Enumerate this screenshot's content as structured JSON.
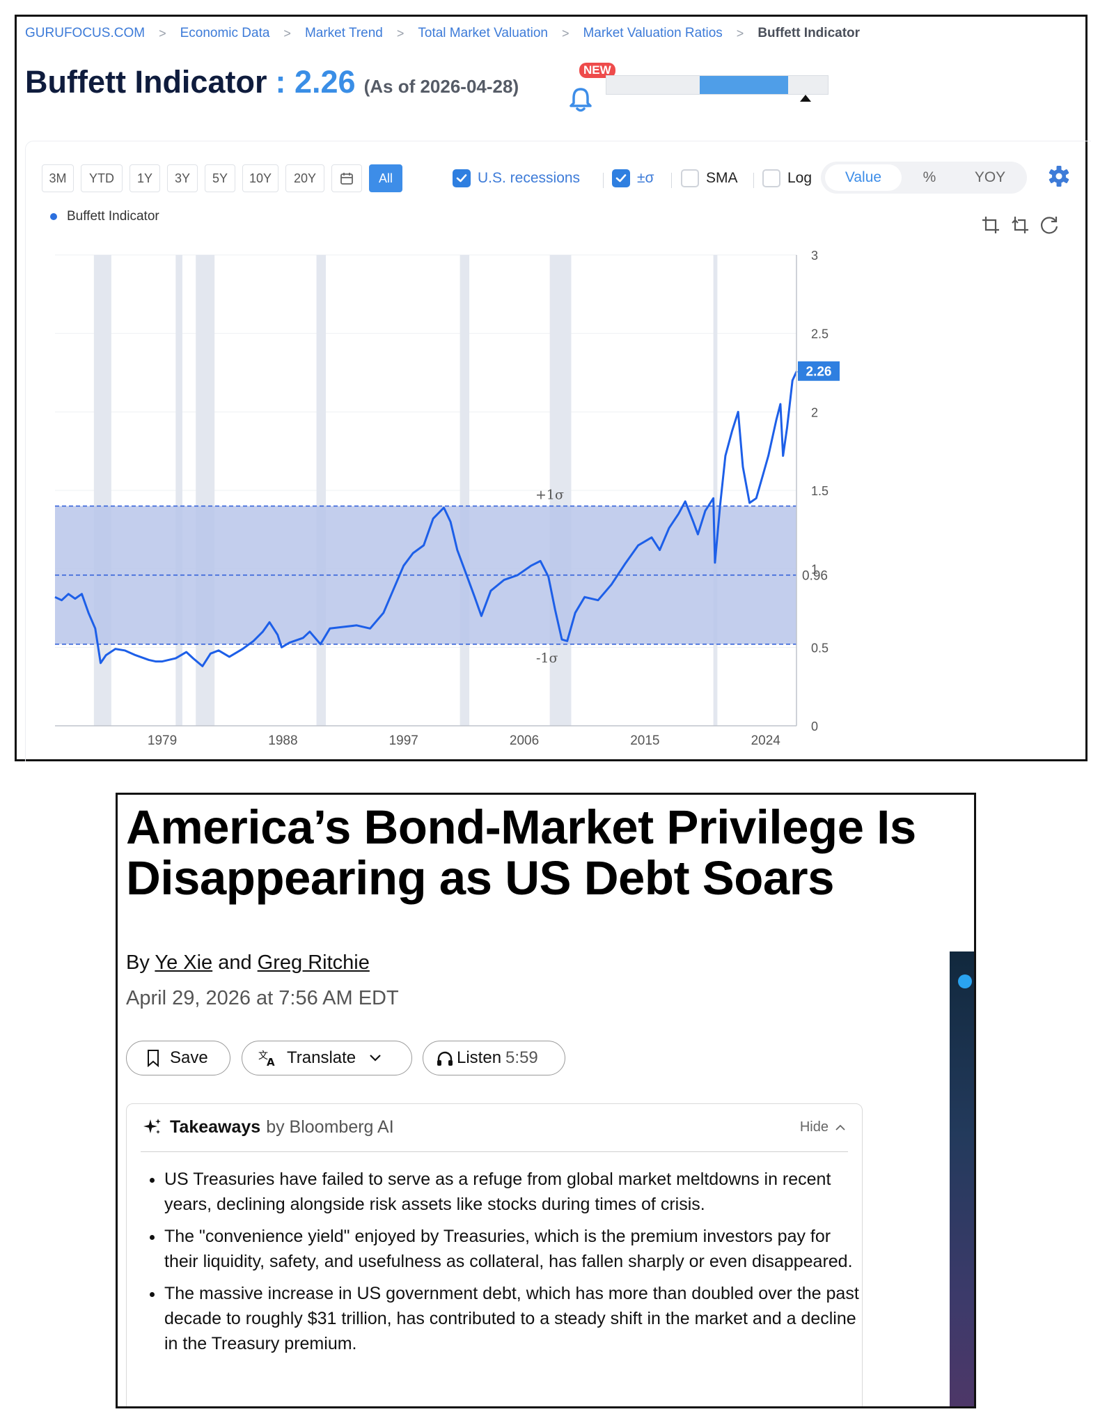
{
  "guru": {
    "breadcrumbs": [
      "GURUFOCUS.COM",
      "Economic Data",
      "Market Trend",
      "Total Market Valuation",
      "Market Valuation Ratios",
      "Buffett Indicator"
    ],
    "title": "Buffett Indicator",
    "title_sep": " : ",
    "value": "2.26",
    "asof": "(As of 2026-04-28)",
    "new_badge": "NEW",
    "valuation_bar": {
      "fill_start": 0.42,
      "fill_end": 0.82,
      "marker": 0.97
    },
    "range_buttons": [
      "3M",
      "YTD",
      "1Y",
      "3Y",
      "5Y",
      "10Y",
      "20Y",
      "All"
    ],
    "active_range": "All",
    "options": {
      "recessions": {
        "label": "U.S. recessions",
        "checked": true
      },
      "sigma": {
        "label": "±σ",
        "checked": true
      },
      "sma": {
        "label": "SMA",
        "checked": false
      },
      "log": {
        "label": "Log",
        "checked": false
      }
    },
    "view_toggle": [
      "Value",
      "%",
      "YOY"
    ],
    "view_selected": "Value",
    "legend": "Buffett Indicator",
    "colors": {
      "line": "#1d5fe8",
      "band": "#b9c5ea",
      "recession": "#e3e7ef",
      "accent": "#3d8de8"
    }
  },
  "chart_data": {
    "type": "line",
    "title": "",
    "series": [
      {
        "name": "Buffett Indicator",
        "x": [
          1971.0,
          1971.5,
          1972.0,
          1972.5,
          1973.0,
          1973.5,
          1974.0,
          1974.4,
          1974.8,
          1975.5,
          1976.2,
          1977.0,
          1978.0,
          1978.5,
          1979.0,
          1980.0,
          1980.8,
          1981.3,
          1982.0,
          1982.6,
          1983.2,
          1984.0,
          1985.0,
          1985.8,
          1986.5,
          1987.0,
          1987.6,
          1987.9,
          1988.5,
          1989.5,
          1990.0,
          1990.8,
          1991.5,
          1992.5,
          1993.5,
          1994.5,
          1995.5,
          1996.3,
          1997.0,
          1997.7,
          1998.5,
          1999.2,
          2000.0,
          2000.5,
          2001.0,
          2001.7,
          2002.3,
          2002.8,
          2003.5,
          2004.5,
          2005.5,
          2006.5,
          2007.2,
          2007.8,
          2008.3,
          2008.8,
          2009.2,
          2009.8,
          2010.5,
          2011.5,
          2012.5,
          2013.5,
          2014.5,
          2015.5,
          2016.1,
          2016.8,
          2017.5,
          2018.0,
          2018.6,
          2018.95,
          2019.5,
          2020.1,
          2020.22,
          2020.6,
          2021.0,
          2021.5,
          2021.95,
          2022.3,
          2022.8,
          2023.3,
          2023.8,
          2024.2,
          2024.8,
          2025.1,
          2025.3,
          2025.6,
          2026.0,
          2026.32
        ],
        "values": [
          0.82,
          0.8,
          0.84,
          0.81,
          0.84,
          0.72,
          0.62,
          0.4,
          0.45,
          0.49,
          0.48,
          0.45,
          0.42,
          0.41,
          0.41,
          0.43,
          0.47,
          0.43,
          0.38,
          0.46,
          0.48,
          0.44,
          0.49,
          0.54,
          0.6,
          0.66,
          0.58,
          0.5,
          0.53,
          0.56,
          0.6,
          0.52,
          0.62,
          0.63,
          0.64,
          0.62,
          0.72,
          0.88,
          1.02,
          1.1,
          1.15,
          1.32,
          1.39,
          1.3,
          1.12,
          0.96,
          0.82,
          0.7,
          0.86,
          0.93,
          0.96,
          1.02,
          1.05,
          0.95,
          0.74,
          0.55,
          0.54,
          0.72,
          0.82,
          0.8,
          0.9,
          1.03,
          1.15,
          1.2,
          1.12,
          1.26,
          1.35,
          1.43,
          1.3,
          1.22,
          1.37,
          1.45,
          1.04,
          1.4,
          1.72,
          1.88,
          2.0,
          1.65,
          1.42,
          1.45,
          1.6,
          1.72,
          1.95,
          2.05,
          1.72,
          1.9,
          2.2,
          2.26
        ]
      }
    ],
    "xlim": [
      1971,
      2026.3
    ],
    "ylim": [
      0,
      3
    ],
    "x_ticks": [
      "1979",
      "1988",
      "1997",
      "2006",
      "2015",
      "2024"
    ],
    "y_ticks": [
      "0",
      "0.5",
      "1",
      "1.5",
      "2",
      "2.5",
      "3"
    ],
    "mean": 0.96,
    "sigma_band": [
      0.52,
      1.4
    ],
    "sigma_labels": {
      "upper": "+1σ",
      "lower": "-1σ",
      "mean": "0.96"
    },
    "last_value_label": "2.26",
    "recessions": [
      [
        1973.9,
        1975.2
      ],
      [
        1980.0,
        1980.5
      ],
      [
        1981.5,
        1982.9
      ],
      [
        1990.5,
        1991.2
      ],
      [
        2001.2,
        2001.9
      ],
      [
        2007.9,
        2009.5
      ],
      [
        2020.1,
        2020.4
      ]
    ],
    "grid": true,
    "legend": "top-left"
  },
  "article": {
    "headline": "America’s Bond-Market Privilege Is Disappearing as US Debt Soars",
    "by": "By ",
    "author1": "Ye Xie",
    "and": " and ",
    "author2": "Greg Ritchie",
    "date": "April 29, 2026 at 7:56 AM EDT",
    "buttons": {
      "save": "Save",
      "translate": "Translate",
      "listen": "Listen",
      "listen_duration": "5:59"
    },
    "takeaways": {
      "title": "Takeaways",
      "by": "by Bloomberg AI",
      "hide": "Hide",
      "items": [
        "US Treasuries have failed to serve as a refuge from global market meltdowns in recent years, declining alongside risk assets like stocks during times of crisis.",
        "The \"convenience yield\" enjoyed by Treasuries, which is the premium investors pay for their liquidity, safety, and usefulness as collateral, has fallen sharply or even disappeared.",
        "The massive increase in US government debt, which has more than doubled over the past decade to roughly $31 trillion, has contributed to a steady shift in the market and a decline in the Treasury premium."
      ]
    }
  }
}
